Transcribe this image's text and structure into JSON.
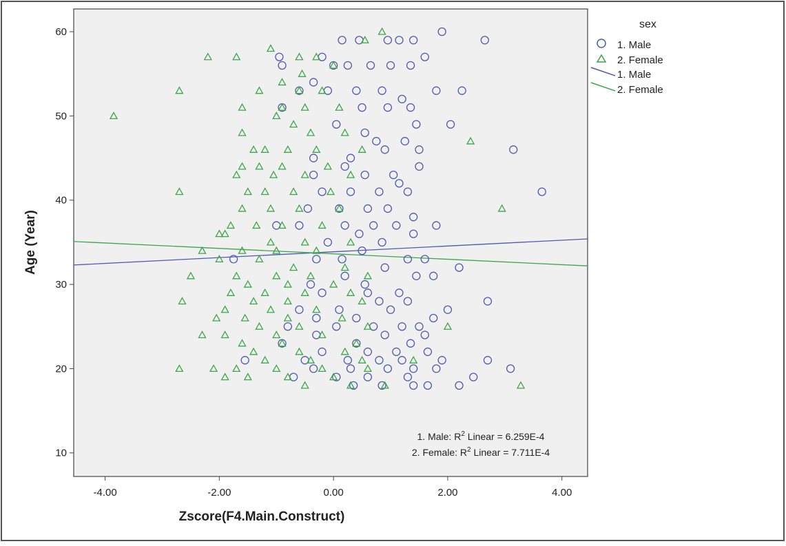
{
  "chart_data": {
    "type": "scatter",
    "xlabel": "Zscore(F4.Main.Construct)",
    "ylabel": "Age (Year)",
    "xlim": [
      -4.55,
      4.45
    ],
    "ylim": [
      7.2,
      62.7
    ],
    "xticks": [
      -4,
      -2,
      0,
      2,
      4
    ],
    "xtick_labels": [
      "-4.00",
      "-2.00",
      "0.00",
      "2.00",
      "4.00"
    ],
    "yticks": [
      10,
      20,
      30,
      40,
      50,
      60
    ],
    "ytick_labels": [
      "10",
      "20",
      "30",
      "40",
      "50",
      "60"
    ],
    "grid": false,
    "legend": {
      "title": "sex",
      "placement": "right",
      "entries": [
        {
          "label": "1. Male",
          "marker": "circle"
        },
        {
          "label": "2. Female",
          "marker": "triangle"
        },
        {
          "label": "1. Male",
          "marker": "line"
        },
        {
          "label": "2. Female",
          "marker": "line"
        }
      ]
    },
    "annotations": {
      "male": {
        "prefix": "1. Male: R",
        "sup": "2",
        "suffix": " Linear = 6.259E-4"
      },
      "female": {
        "prefix": "2. Female: R",
        "sup": "2",
        "suffix": " Linear = 7.711E-4"
      }
    },
    "colors": {
      "male": "#5058b0",
      "female": "#3aa648",
      "plot_bg": "#f0f0f0"
    },
    "fit_lines": [
      {
        "name": "1. Male",
        "intercept": 33.87,
        "slope": 0.344
      },
      {
        "name": "2. Female",
        "intercept": 33.63,
        "slope": -0.322
      }
    ],
    "series": [
      {
        "name": "1. Male",
        "marker": "circle",
        "points": [
          [
            3.65,
            41
          ],
          [
            3.15,
            46
          ],
          [
            2.65,
            59
          ],
          [
            1.9,
            60
          ],
          [
            2.25,
            53
          ],
          [
            2.05,
            49
          ],
          [
            2.7,
            28
          ],
          [
            2.0,
            27
          ],
          [
            2.7,
            21
          ],
          [
            3.1,
            20
          ],
          [
            2.45,
            19
          ],
          [
            2.2,
            18
          ],
          [
            1.9,
            21
          ],
          [
            2.2,
            32
          ],
          [
            -1.75,
            33
          ],
          [
            -1.55,
            21
          ],
          [
            -1.0,
            37
          ],
          [
            -0.9,
            56
          ],
          [
            -0.95,
            57
          ],
          [
            -0.35,
            54
          ],
          [
            -0.2,
            57
          ],
          [
            0.15,
            59
          ],
          [
            0.45,
            59
          ],
          [
            0.95,
            59
          ],
          [
            1.15,
            59
          ],
          [
            1.4,
            59
          ],
          [
            1.6,
            57
          ],
          [
            1.8,
            53
          ],
          [
            1.35,
            56
          ],
          [
            1.0,
            56
          ],
          [
            0.65,
            56
          ],
          [
            0.25,
            56
          ],
          [
            0.0,
            56
          ],
          [
            0.4,
            53
          ],
          [
            0.85,
            53
          ],
          [
            1.2,
            52
          ],
          [
            -0.1,
            53
          ],
          [
            -0.6,
            53
          ],
          [
            -0.9,
            51
          ],
          [
            0.5,
            51
          ],
          [
            0.95,
            51
          ],
          [
            1.35,
            51
          ],
          [
            0.05,
            49
          ],
          [
            1.45,
            49
          ],
          [
            0.55,
            48
          ],
          [
            0.75,
            47
          ],
          [
            1.25,
            47
          ],
          [
            1.5,
            46
          ],
          [
            0.9,
            46
          ],
          [
            0.3,
            45
          ],
          [
            -0.35,
            45
          ],
          [
            1.5,
            44
          ],
          [
            0.2,
            44
          ],
          [
            0.55,
            43
          ],
          [
            1.05,
            43
          ],
          [
            -0.35,
            43
          ],
          [
            1.15,
            42
          ],
          [
            0.8,
            41
          ],
          [
            1.3,
            41
          ],
          [
            -0.2,
            41
          ],
          [
            0.3,
            41
          ],
          [
            0.6,
            39
          ],
          [
            0.95,
            39
          ],
          [
            1.4,
            38
          ],
          [
            0.1,
            39
          ],
          [
            -0.45,
            39
          ],
          [
            0.7,
            37
          ],
          [
            1.1,
            37
          ],
          [
            1.8,
            37
          ],
          [
            -0.6,
            37
          ],
          [
            0.2,
            37
          ],
          [
            1.4,
            36
          ],
          [
            0.45,
            36
          ],
          [
            -0.1,
            35
          ],
          [
            0.85,
            35
          ],
          [
            0.5,
            34
          ],
          [
            1.3,
            33
          ],
          [
            1.6,
            33
          ],
          [
            0.15,
            33
          ],
          [
            -0.3,
            33
          ],
          [
            0.9,
            32
          ],
          [
            0.2,
            31
          ],
          [
            1.45,
            31
          ],
          [
            1.75,
            31
          ],
          [
            0.55,
            30
          ],
          [
            -0.4,
            30
          ],
          [
            1.15,
            29
          ],
          [
            0.6,
            29
          ],
          [
            -0.2,
            29
          ],
          [
            1.3,
            28
          ],
          [
            0.8,
            28
          ],
          [
            -0.6,
            27
          ],
          [
            0.1,
            27
          ],
          [
            1.0,
            27
          ],
          [
            1.75,
            26
          ],
          [
            0.4,
            26
          ],
          [
            -0.3,
            26
          ],
          [
            1.2,
            25
          ],
          [
            0.7,
            25
          ],
          [
            1.5,
            25
          ],
          [
            -0.8,
            25
          ],
          [
            0.05,
            25
          ],
          [
            1.6,
            24
          ],
          [
            0.9,
            24
          ],
          [
            -0.3,
            24
          ],
          [
            1.35,
            23
          ],
          [
            0.4,
            23
          ],
          [
            -0.9,
            23
          ],
          [
            1.1,
            22
          ],
          [
            0.6,
            22
          ],
          [
            -0.2,
            22
          ],
          [
            1.65,
            22
          ],
          [
            0.25,
            21
          ],
          [
            1.2,
            21
          ],
          [
            0.8,
            21
          ],
          [
            -0.5,
            21
          ],
          [
            1.4,
            20
          ],
          [
            0.95,
            20
          ],
          [
            0.3,
            20
          ],
          [
            -0.35,
            20
          ],
          [
            1.8,
            20
          ],
          [
            1.3,
            19
          ],
          [
            0.6,
            19
          ],
          [
            0.05,
            19
          ],
          [
            -0.7,
            19
          ],
          [
            1.4,
            18
          ],
          [
            1.65,
            18
          ],
          [
            0.85,
            18
          ],
          [
            0.35,
            18
          ]
        ]
      },
      {
        "name": "2. Female",
        "marker": "triangle",
        "points": [
          [
            -3.85,
            50
          ],
          [
            -2.7,
            53
          ],
          [
            -2.7,
            41
          ],
          [
            -2.2,
            57
          ],
          [
            -1.7,
            57
          ],
          [
            -1.6,
            51
          ],
          [
            -1.6,
            48
          ],
          [
            -2.0,
            36
          ],
          [
            -2.3,
            34
          ],
          [
            -2.5,
            31
          ],
          [
            -2.3,
            24
          ],
          [
            -2.65,
            28
          ],
          [
            -2.7,
            20
          ],
          [
            -2.1,
            20
          ],
          [
            -1.9,
            19
          ],
          [
            -2.05,
            26
          ],
          [
            -1.1,
            58
          ],
          [
            -1.3,
            53
          ],
          [
            2.4,
            47
          ],
          [
            2.95,
            39
          ],
          [
            3.28,
            18
          ],
          [
            2.0,
            25
          ],
          [
            0.85,
            60
          ],
          [
            0.55,
            59
          ],
          [
            1.4,
            21
          ],
          [
            -0.6,
            57
          ],
          [
            -0.3,
            57
          ],
          [
            0.0,
            56
          ],
          [
            -0.55,
            55
          ],
          [
            -0.9,
            54
          ],
          [
            -0.6,
            53
          ],
          [
            -0.2,
            53
          ],
          [
            -0.9,
            51
          ],
          [
            -0.5,
            51
          ],
          [
            0.1,
            51
          ],
          [
            -1.0,
            50
          ],
          [
            -0.7,
            49
          ],
          [
            -0.4,
            48
          ],
          [
            0.2,
            48
          ],
          [
            -1.4,
            46
          ],
          [
            -1.2,
            46
          ],
          [
            -0.8,
            46
          ],
          [
            -0.3,
            46
          ],
          [
            0.5,
            46
          ],
          [
            -1.6,
            44
          ],
          [
            -1.3,
            44
          ],
          [
            -0.9,
            44
          ],
          [
            -0.1,
            44
          ],
          [
            -1.7,
            43
          ],
          [
            -1.05,
            43
          ],
          [
            -0.5,
            43
          ],
          [
            0.3,
            43
          ],
          [
            -1.5,
            41
          ],
          [
            -1.2,
            41
          ],
          [
            -0.7,
            41
          ],
          [
            -0.05,
            41
          ],
          [
            -1.6,
            39
          ],
          [
            -1.1,
            39
          ],
          [
            -0.6,
            39
          ],
          [
            0.1,
            39
          ],
          [
            -1.8,
            37
          ],
          [
            -1.35,
            37
          ],
          [
            -0.9,
            37
          ],
          [
            -0.2,
            37
          ],
          [
            -1.9,
            36
          ],
          [
            -1.1,
            35
          ],
          [
            -0.5,
            35
          ],
          [
            0.3,
            35
          ],
          [
            -1.6,
            34
          ],
          [
            -1.0,
            34
          ],
          [
            -0.3,
            34
          ],
          [
            -2.0,
            33
          ],
          [
            -1.3,
            33
          ],
          [
            -0.7,
            32
          ],
          [
            0.2,
            32
          ],
          [
            -1.7,
            31
          ],
          [
            -1.0,
            31
          ],
          [
            -0.4,
            31
          ],
          [
            0.6,
            31
          ],
          [
            -1.5,
            30
          ],
          [
            -0.8,
            30
          ],
          [
            0.0,
            30
          ],
          [
            -1.8,
            29
          ],
          [
            -1.2,
            29
          ],
          [
            -0.5,
            29
          ],
          [
            0.3,
            29
          ],
          [
            -1.4,
            28
          ],
          [
            -0.8,
            28
          ],
          [
            0.5,
            28
          ],
          [
            -1.9,
            27
          ],
          [
            -1.1,
            27
          ],
          [
            -0.3,
            27
          ],
          [
            -1.55,
            26
          ],
          [
            -0.8,
            26
          ],
          [
            0.15,
            26
          ],
          [
            -1.3,
            25
          ],
          [
            -0.6,
            25
          ],
          [
            0.6,
            25
          ],
          [
            -1.9,
            24
          ],
          [
            -1.0,
            24
          ],
          [
            -0.2,
            24
          ],
          [
            -1.6,
            23
          ],
          [
            -0.9,
            23
          ],
          [
            0.4,
            23
          ],
          [
            -1.4,
            22
          ],
          [
            -0.6,
            22
          ],
          [
            0.2,
            22
          ],
          [
            -1.2,
            21
          ],
          [
            -0.4,
            21
          ],
          [
            0.5,
            21
          ],
          [
            -1.7,
            20
          ],
          [
            -1.0,
            20
          ],
          [
            -0.2,
            20
          ],
          [
            0.6,
            20
          ],
          [
            -1.5,
            19
          ],
          [
            -0.8,
            19
          ],
          [
            0.0,
            19
          ],
          [
            -0.5,
            18
          ],
          [
            0.3,
            18
          ],
          [
            0.9,
            18
          ]
        ]
      }
    ]
  }
}
